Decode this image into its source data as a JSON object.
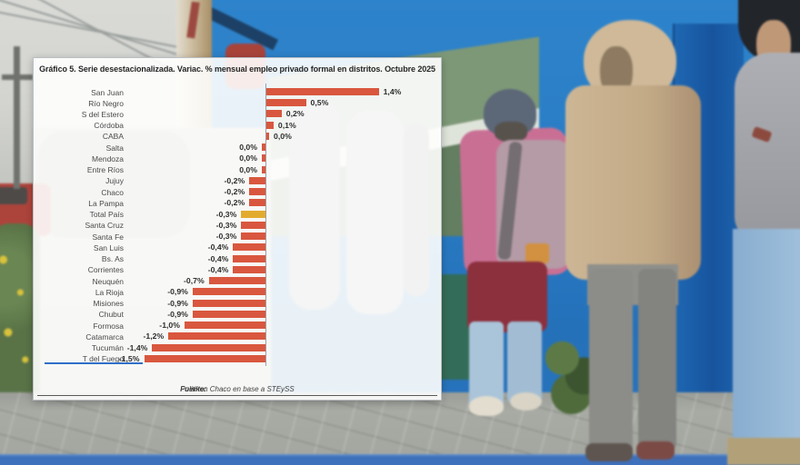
{
  "chart_panel": {
    "title": "Gráfico 5. Serie desestacionalizada. Variac. % mensual empleo privado formal en distritos. Octubre 2025",
    "source_prefix": "Fuente:",
    "source_text": " Politikon Chaco en base a STEySS"
  },
  "chart_data": {
    "type": "bar",
    "orientation": "horizontal",
    "title": "Gráfico 5. Serie desestacionalizada. Variac. % mensual empleo privado formal en distritos. Octubre 2025",
    "unit": "% monthly variation",
    "value_range": [
      -1.5,
      1.4
    ],
    "zero_axis_line": true,
    "grid": false,
    "legend": false,
    "bar_color": "#d9573e",
    "highlight_color": "#e3ab2e",
    "underline_color": "#2f6fc8",
    "rows": [
      {
        "name": "San Juan",
        "value": 1.4,
        "label": "1,4%"
      },
      {
        "name": "Río Negro",
        "value": 0.5,
        "label": "0,5%"
      },
      {
        "name": "S del Estero",
        "value": 0.2,
        "label": "0,2%"
      },
      {
        "name": "Córdoba",
        "value": 0.1,
        "label": "0,1%"
      },
      {
        "name": "CABA",
        "value": 0.0,
        "label": "0,0%",
        "side": "right"
      },
      {
        "name": "Salta",
        "value": 0.0,
        "label": "0,0%",
        "side": "left"
      },
      {
        "name": "Mendoza",
        "value": 0.0,
        "label": "0,0%",
        "side": "left"
      },
      {
        "name": "Entre Ríos",
        "value": 0.0,
        "label": "0,0%",
        "side": "left"
      },
      {
        "name": "Jujuy",
        "value": -0.2,
        "label": "-0,2%"
      },
      {
        "name": "Chaco",
        "value": -0.2,
        "label": "-0,2%"
      },
      {
        "name": "La Pampa",
        "value": -0.2,
        "label": "-0,2%"
      },
      {
        "name": "Total País",
        "value": -0.3,
        "label": "-0,3%",
        "highlight": true
      },
      {
        "name": "Santa Cruz",
        "value": -0.3,
        "label": "-0,3%"
      },
      {
        "name": "Santa Fe",
        "value": -0.3,
        "label": "-0,3%"
      },
      {
        "name": "San Luis",
        "value": -0.4,
        "label": "-0,4%"
      },
      {
        "name": "Bs. As",
        "value": -0.4,
        "label": "-0,4%"
      },
      {
        "name": "Corrientes",
        "value": -0.4,
        "label": "-0,4%"
      },
      {
        "name": "Neuquén",
        "value": -0.7,
        "label": "-0,7%"
      },
      {
        "name": "La Rioja",
        "value": -0.9,
        "label": "-0,9%"
      },
      {
        "name": "Misiones",
        "value": -0.9,
        "label": "-0,9%"
      },
      {
        "name": "Chubut",
        "value": -0.9,
        "label": "-0,9%"
      },
      {
        "name": "Formosa",
        "value": -1.0,
        "label": "-1,0%"
      },
      {
        "name": "Catamarca",
        "value": -1.2,
        "label": "-1,2%"
      },
      {
        "name": "Tucumán",
        "value": -1.4,
        "label": "-1,4%"
      },
      {
        "name": "T del Fuego",
        "value": -1.5,
        "label": "-1,5%",
        "underline": true
      }
    ]
  },
  "background": {
    "description": "people queuing on a sidewalk in front of a bright blue wall",
    "wall_color": "#2b7fc6",
    "pavement_color": "#a8aba4",
    "curb_color": "#3e71bb",
    "pale_building_color": "#d8d9d5",
    "person_colors": {
      "pink_jacket": "#c96f94",
      "backpack": "#b49ba5",
      "tan_parka": "#c6ae8c",
      "gray_sweatpants": "#8c8c88",
      "gray_sweatshirt": "#a4a5aa",
      "black_cap": "#22252a",
      "light_blue_jeans": "#93b6d5"
    }
  }
}
